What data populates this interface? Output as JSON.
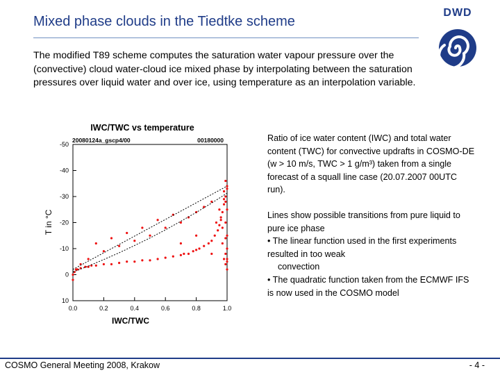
{
  "slide": {
    "title": "Mixed phase clouds in the Tiedtke scheme",
    "intro": "The modified T89 scheme computes the saturation water vapour pressure over the (convective) cloud water-cloud ice mixed phase by interpolating between the saturation pressures over liquid water and over ice, using temperature as an interpolation variable.",
    "caption": "Ratio of ice water content (IWC) and total water content (TWC) for convective updrafts in COSMO-DE (w > 10 m/s, TWC > 1 g/m³) taken from a single forecast of a squall line case (20.07.2007 00UTC run).",
    "notes_head": "Lines show possible transitions from pure liquid to pure ice phase",
    "notes_b1": "• The linear function used in the first experiments resulted in too weak",
    "notes_b1_cont": "convection",
    "notes_b2": "• The quadratic function taken from the ECMWF IFS is now used in the COSMO model",
    "footer_left": "COSMO General Meeting 2008, Krakow",
    "footer_right": "- 4 -",
    "logo_text": "DWD",
    "logo_icon": "dwd-spiral-logo-icon",
    "accent_color": "#1f3c88"
  },
  "chart_data": {
    "type": "scatter",
    "title": "IWC/TWC vs temperature",
    "run_label": "20080124a_gscp4/00",
    "time_label": "00180000",
    "xlabel": "IWC/TWC",
    "ylabel": "T in °C",
    "xlim": [
      0.0,
      1.0
    ],
    "ylim": [
      10,
      -50
    ],
    "xticks": [
      "0.0",
      "0.2",
      "0.4",
      "0.6",
      "0.8",
      "1.0"
    ],
    "yticks": [
      "-50",
      "-40",
      "-30",
      "-20",
      "-10",
      "0",
      "10"
    ],
    "point_color": "#ee1111",
    "series": [
      {
        "kind": "points",
        "x": [
          0.0,
          0.0,
          0.01,
          0.02,
          0.03,
          0.05,
          0.08,
          0.1,
          0.12,
          0.15,
          0.2,
          0.25,
          0.3,
          0.35,
          0.4,
          0.45,
          0.5,
          0.55,
          0.6,
          0.65,
          0.7,
          0.72,
          0.75,
          0.78,
          0.8,
          0.82,
          0.85,
          0.88,
          0.9,
          0.92,
          0.94,
          0.95,
          0.96,
          0.97,
          0.98,
          0.99,
          1.0,
          0.98,
          0.99,
          1.0,
          0.97,
          0.99,
          1.0,
          1.0,
          0.99,
          1.0,
          0.95,
          0.9,
          0.85,
          0.8,
          0.75,
          0.7,
          0.6,
          0.5,
          0.4,
          0.3,
          0.2,
          0.1,
          0.05,
          0.15,
          0.25,
          0.35,
          0.45,
          0.55,
          0.65,
          0.7,
          0.8,
          0.9,
          0.97,
          0.99,
          1.0,
          0.98,
          0.96,
          0.93,
          0.99,
          1.0,
          1.0,
          0.99,
          0.98
        ],
        "y": [
          2,
          0,
          -1,
          -2,
          -2,
          -2.5,
          -3,
          -3,
          -3.5,
          -3.5,
          -4,
          -4,
          -4.5,
          -5,
          -5,
          -5.5,
          -5.5,
          -6,
          -6.5,
          -7,
          -7.5,
          -8,
          -8,
          -9,
          -9.5,
          -10,
          -11,
          -12,
          -13,
          -15,
          -17,
          -19,
          -21,
          -24,
          -27,
          -30,
          -34,
          -32,
          -28,
          -25,
          -18,
          -20,
          -15,
          -10,
          -8,
          -6,
          -25,
          -28,
          -26,
          -24,
          -22,
          -20,
          -18,
          -15,
          -13,
          -11,
          -9,
          -6,
          -4,
          -12,
          -14,
          -16,
          -18,
          -21,
          -23,
          -12,
          -15,
          -8,
          -12,
          -36,
          -33,
          -29,
          -22,
          -20,
          -14,
          -5,
          -2,
          -4,
          -6
        ]
      },
      {
        "kind": "line",
        "name": "linear",
        "x": [
          0.0,
          0.25,
          0.5,
          0.75,
          1.0
        ],
        "y": [
          -2,
          -10,
          -18,
          -26,
          -34
        ]
      },
      {
        "kind": "line",
        "name": "quadratic",
        "x": [
          0.0,
          0.1,
          0.2,
          0.3,
          0.4,
          0.5,
          0.6,
          0.7,
          0.8,
          0.9,
          1.0
        ],
        "y": [
          -1,
          -3.3,
          -5.8,
          -8.4,
          -11.2,
          -14.1,
          -17.2,
          -20.5,
          -23.9,
          -27.5,
          -31.3
        ]
      }
    ]
  }
}
